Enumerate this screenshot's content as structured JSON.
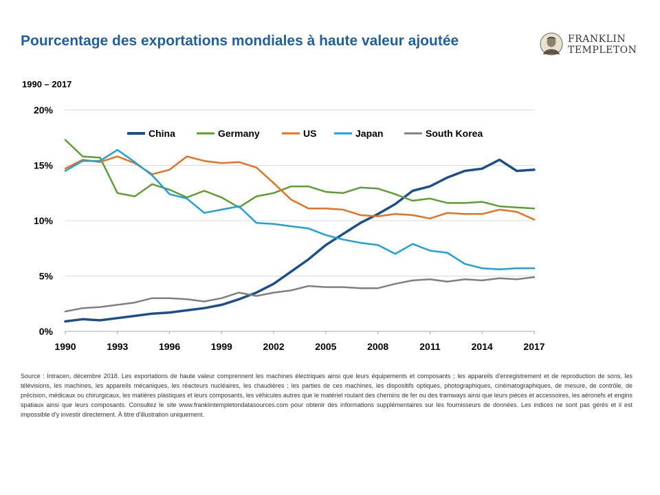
{
  "header": {
    "title": "Pourcentage des exportations mondiales à haute valeur ajoutée",
    "subtitle": "1990 – 2017"
  },
  "logo": {
    "line1": "FRANKLIN",
    "line2": "TEMPLETON",
    "icon": "franklin-portrait-icon"
  },
  "chart_data": {
    "type": "line",
    "title": "Pourcentage des exportations mondiales à haute valeur ajoutée",
    "subtitle": "1990 – 2017",
    "x": [
      1990,
      1991,
      1992,
      1993,
      1994,
      1995,
      1996,
      1997,
      1998,
      1999,
      2000,
      2001,
      2002,
      2003,
      2004,
      2005,
      2006,
      2007,
      2008,
      2009,
      2010,
      2011,
      2012,
      2013,
      2014,
      2015,
      2016,
      2017
    ],
    "xlim": [
      1990,
      2017
    ],
    "xticks": [
      "1990",
      "1993",
      "1996",
      "1999",
      "2002",
      "2005",
      "2008",
      "2011",
      "2014",
      "2017"
    ],
    "ylim": [
      0,
      20
    ],
    "yticks": [
      "0%",
      "5%",
      "10%",
      "15%",
      "20%"
    ],
    "grid": true,
    "legend_position": "top",
    "series": [
      {
        "name": "China",
        "color": "#1a4f8b",
        "values": [
          0.9,
          1.1,
          1.0,
          1.2,
          1.4,
          1.6,
          1.7,
          1.9,
          2.1,
          2.4,
          2.9,
          3.5,
          4.3,
          5.4,
          6.5,
          7.8,
          8.8,
          9.8,
          10.6,
          11.5,
          12.7,
          13.1,
          13.9,
          14.5,
          14.7,
          15.5,
          14.5,
          14.6
        ]
      },
      {
        "name": "Germany",
        "color": "#5c9e31",
        "values": [
          17.3,
          15.8,
          15.7,
          12.5,
          12.2,
          13.3,
          12.8,
          12.1,
          12.7,
          12.1,
          11.2,
          12.2,
          12.5,
          13.1,
          13.1,
          12.6,
          12.5,
          13.0,
          12.9,
          12.4,
          11.8,
          12.0,
          11.6,
          11.6,
          11.7,
          11.3,
          11.2,
          11.1
        ]
      },
      {
        "name": "US",
        "color": "#e8711f",
        "values": [
          14.7,
          15.5,
          15.3,
          15.8,
          15.2,
          14.2,
          14.6,
          15.8,
          15.4,
          15.2,
          15.3,
          14.8,
          13.4,
          11.9,
          11.1,
          11.1,
          11.0,
          10.5,
          10.4,
          10.6,
          10.5,
          10.2,
          10.7,
          10.6,
          10.6,
          11.0,
          10.8,
          10.1
        ]
      },
      {
        "name": "Japan",
        "color": "#1ea0db",
        "values": [
          14.5,
          15.4,
          15.4,
          16.4,
          15.3,
          14.1,
          12.4,
          12.0,
          10.7,
          11.0,
          11.3,
          9.8,
          9.7,
          9.5,
          9.3,
          8.7,
          8.3,
          8.0,
          7.8,
          7.0,
          7.9,
          7.3,
          7.1,
          6.1,
          5.7,
          5.6,
          5.7,
          5.7
        ]
      },
      {
        "name": "South Korea",
        "color": "#7f7f7f",
        "values": [
          1.8,
          2.1,
          2.2,
          2.4,
          2.6,
          3.0,
          3.0,
          2.9,
          2.7,
          3.0,
          3.5,
          3.2,
          3.5,
          3.7,
          4.1,
          4.0,
          4.0,
          3.9,
          3.9,
          4.3,
          4.6,
          4.7,
          4.5,
          4.7,
          4.6,
          4.8,
          4.7,
          4.9
        ]
      }
    ]
  },
  "source_text": "Source : Intracen, décembre 2018. Les exportations de haute valeur comprennent les machines électriques ainsi que leurs équipements et composants ; les appareils d'enregistrement et de reproduction de sons, les télévisions, les machines, les appareils mécaniques, les réacteurs nucléaires, les chaudières ; les parties de ces machines, les dispositifs optiques, photographiques, cinématographiques, de mesure, de contrôle, de précision, médicaux ou chirurgicaux, les matières plastiques et leurs composants, les véhicules autres que le matériel roulant des chemins de fer ou des tramways ainsi que leurs pièces et accessoires, les aéronefs et engins spatiaux ainsi que leurs composants. Consultez le site www.franklintempletondatasources.com pour obtenir des informations supplémentaires sur les fournisseurs de données. Les indices ne sont pas gérés et il est impossible d'y investir directement. À titre d'illustration uniquement."
}
